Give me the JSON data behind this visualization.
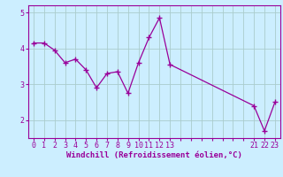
{
  "x": [
    0,
    1,
    2,
    3,
    4,
    5,
    6,
    7,
    8,
    9,
    10,
    11,
    12,
    13,
    21,
    22,
    23
  ],
  "y": [
    4.15,
    4.15,
    3.95,
    3.6,
    3.7,
    3.4,
    2.9,
    3.3,
    3.35,
    2.75,
    3.6,
    4.3,
    4.85,
    3.55,
    2.4,
    1.7,
    2.5
  ],
  "line_color": "#990099",
  "marker_color": "#990099",
  "bg_color": "#cceeff",
  "grid_color": "#aacccc",
  "axis_color": "#990099",
  "tick_color": "#990099",
  "xlabel": "Windchill (Refroidissement éolien,°C)",
  "xlabel_color": "#990099",
  "ylim": [
    1.5,
    5.2
  ],
  "xlim": [
    -0.5,
    23.5
  ],
  "yticks": [
    2,
    3,
    4,
    5
  ],
  "figsize": [
    3.2,
    2.0
  ],
  "dpi": 100
}
